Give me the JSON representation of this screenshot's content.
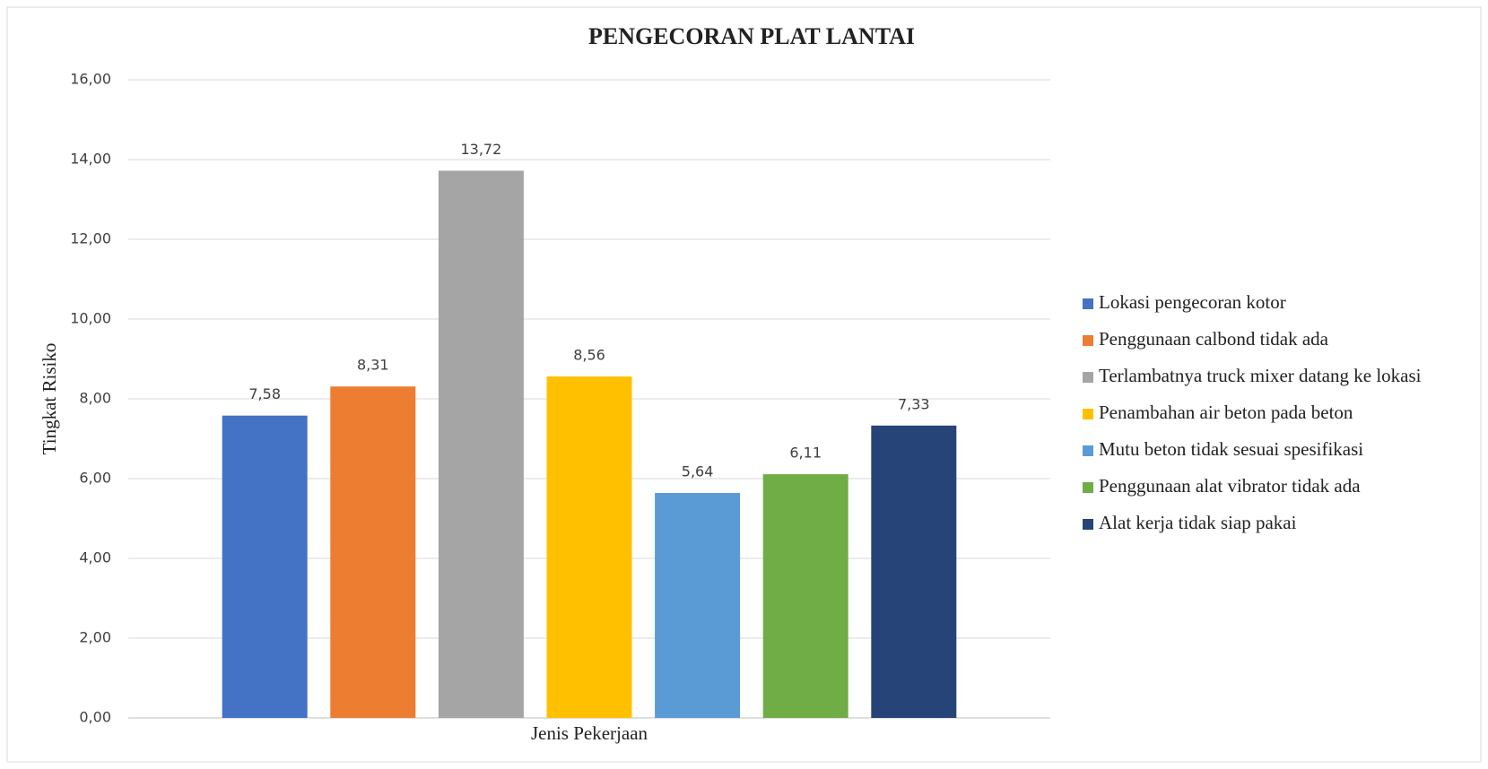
{
  "chart_data": {
    "type": "bar",
    "title": "PENGECORAN PLAT LANTAI",
    "x_label": "Jenis Pekerjaan",
    "y_label": "Tingkat Risiko",
    "series": [
      {
        "name": "Lokasi pengecoran kotor",
        "color": "#4472c4",
        "values": [
          7.58
        ],
        "value_labels": [
          "7,58"
        ]
      },
      {
        "name": "Penggunaan calbond tidak ada",
        "color": "#ed7d31",
        "values": [
          8.31
        ],
        "value_labels": [
          "8,31"
        ]
      },
      {
        "name": "Terlambatnya truck mixer datang ke lokasi",
        "color": "#a5a5a5",
        "values": [
          13.72
        ],
        "value_labels": [
          "13,72"
        ]
      },
      {
        "name": "Penambahan air beton pada beton",
        "color": "#ffc000",
        "values": [
          8.56
        ],
        "value_labels": [
          "8,56"
        ]
      },
      {
        "name": "Mutu beton tidak sesuai spesifikasi",
        "color": "#5b9bd5",
        "values": [
          5.64
        ],
        "value_labels": [
          "5,64"
        ]
      },
      {
        "name": "Penggunaan alat vibrator tidak ada",
        "color": "#70ad47",
        "values": [
          6.11
        ],
        "value_labels": [
          "6,11"
        ]
      },
      {
        "name": "Alat kerja tidak siap pakai",
        "color": "#264478",
        "values": [
          7.33
        ],
        "value_labels": [
          "7,33"
        ]
      }
    ],
    "ylim": [
      0,
      16
    ],
    "yticks": [
      {
        "value": 0,
        "label": "0,00"
      },
      {
        "value": 2,
        "label": "2,00"
      },
      {
        "value": 4,
        "label": "4,00"
      },
      {
        "value": 6,
        "label": "6,00"
      },
      {
        "value": 8,
        "label": "8,00"
      },
      {
        "value": 10,
        "label": "10,00"
      },
      {
        "value": 12,
        "label": "12,00"
      },
      {
        "value": 14,
        "label": "14,00"
      },
      {
        "value": 16,
        "label": "16,00"
      }
    ],
    "grid": true,
    "legend": "right"
  }
}
